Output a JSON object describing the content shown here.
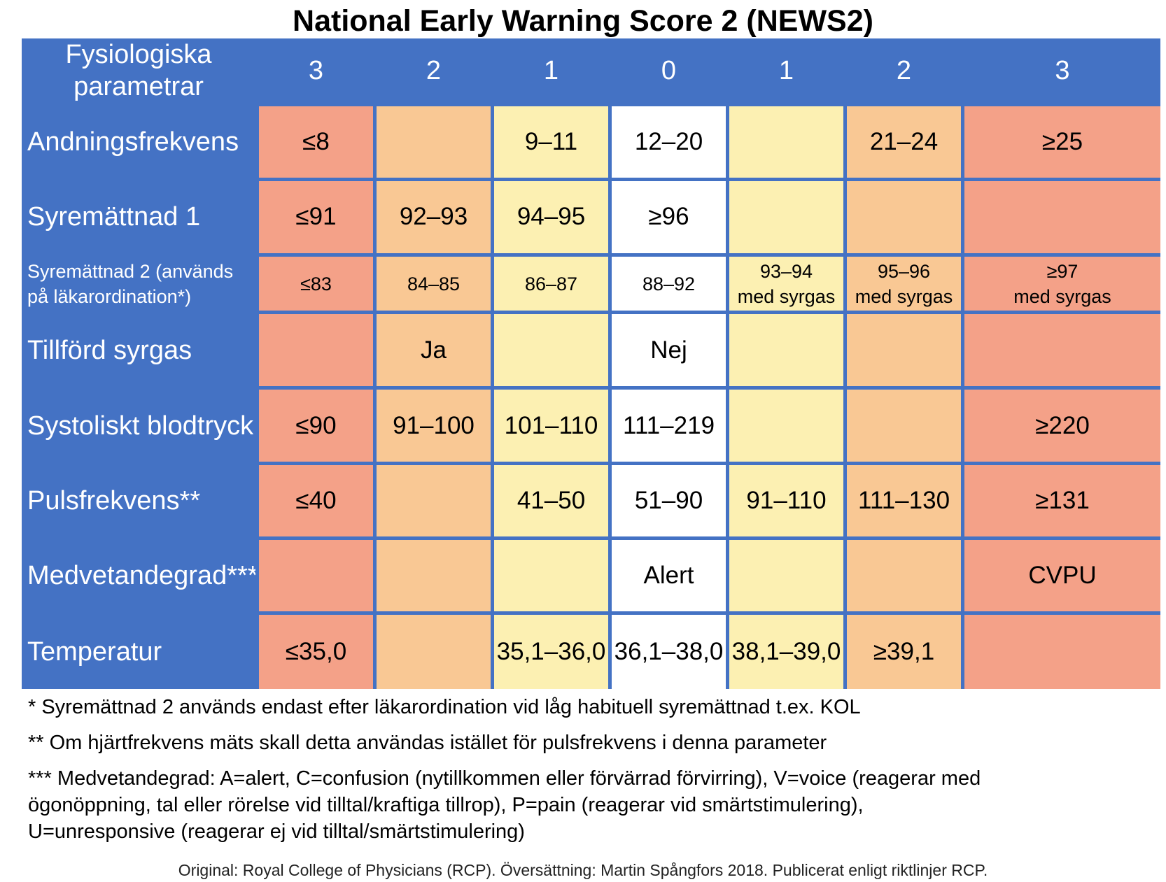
{
  "title": "National Early Warning Score 2 (NEWS2)",
  "table": {
    "corner_line1": "Fysiologiska",
    "corner_line2": "parametrar",
    "score_headers": [
      "3",
      "2",
      "1",
      "0",
      "1",
      "2",
      "3"
    ],
    "score_levels": [
      3,
      2,
      1,
      0,
      1,
      2,
      3
    ],
    "colors": {
      "header_blue": "#4472c4",
      "score_3": "#f4a188",
      "score_2": "#f9c894",
      "score_1": "#fcf0b2",
      "score_0": "#ffffff"
    },
    "rows": [
      {
        "label": "Andningsfrekvens",
        "cells": [
          "≤8",
          "",
          "9–11",
          "12–20",
          "",
          "21–24",
          "≥25"
        ]
      },
      {
        "label": "Syremättnad 1",
        "cells": [
          "≤91",
          "92–93",
          "94–95",
          "≥96",
          "",
          "",
          ""
        ]
      },
      {
        "label_line1": "Syremättnad 2 (används",
        "label_line2": "på läkarordination*)",
        "cells": [
          "≤83",
          "84–85",
          "86–87",
          "88–92",
          "",
          "",
          ""
        ],
        "cells_line1": [
          "",
          "",
          "",
          "",
          "93–94",
          "95–96",
          "≥97"
        ],
        "cells_line2": [
          "",
          "",
          "",
          "",
          "med syrgas",
          "med syrgas",
          "med syrgas"
        ]
      },
      {
        "label": "Tillförd syrgas",
        "cells": [
          "",
          "Ja",
          "",
          "Nej",
          "",
          "",
          ""
        ]
      },
      {
        "label": "Systoliskt blodtryck",
        "cells": [
          "≤90",
          "91–100",
          "101–110",
          "111–219",
          "",
          "",
          "≥220"
        ]
      },
      {
        "label": "Pulsfrekvens**",
        "cells": [
          "≤40",
          "",
          "41–50",
          "51–90",
          "91–110",
          "111–130",
          "≥131"
        ]
      },
      {
        "label": "Medvetandegrad***",
        "cells": [
          "",
          "",
          "",
          "Alert",
          "",
          "",
          "CVPU"
        ]
      },
      {
        "label": "Temperatur",
        "cells": [
          "≤35,0",
          "",
          "35,1–36,0",
          "36,1–38,0",
          "38,1–39,0",
          "≥39,1",
          ""
        ]
      }
    ]
  },
  "notes": {
    "note1": "* Syremättnad 2 används endast efter läkarordination vid låg habituell syremättnad t.ex. KOL",
    "note2": "** Om hjärtfrekvens mäts skall detta användas istället för pulsfrekvens i denna parameter",
    "note3_line1": "*** Medvetandegrad: A=alert, C=confusion (nytillkommen eller förvärrad förvirring), V=voice (reagerar med",
    "note3_line2": "ögonöppning, tal eller rörelse vid tilltal/kraftiga tillrop), P=pain (reagerar vid smärtstimulering),",
    "note3_line3": "U=unresponsive (reagerar ej vid tilltal/smärtstimulering)"
  },
  "credit": "Original: Royal College of Physicians (RCP). Översättning: Martin Spångfors 2018. Publicerat enligt riktlinjer RCP."
}
